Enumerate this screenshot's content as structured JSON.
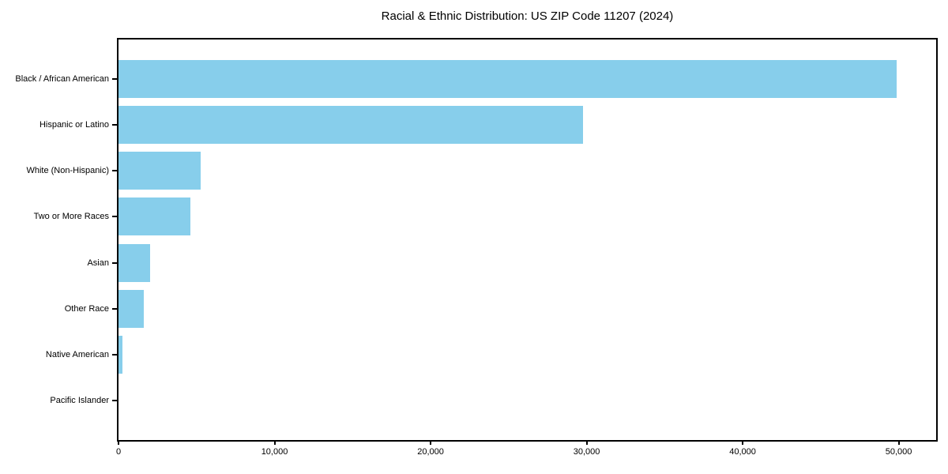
{
  "colors": {
    "bar": "#87CEEB",
    "axis": "#000000",
    "text": "#000000",
    "background": "#ffffff"
  },
  "chart_data": {
    "type": "bar",
    "orientation": "horizontal",
    "title": "Racial & Ethnic Distribution: US ZIP Code 11207 (2024)",
    "xlabel": "",
    "ylabel": "",
    "categories": [
      "Black / African American",
      "Hispanic or Latino",
      "White (Non-Hispanic)",
      "Two or More Races",
      "Asian",
      "Other Race",
      "Native American",
      "Pacific Islander"
    ],
    "values": [
      49850,
      29750,
      5250,
      4600,
      2000,
      1600,
      250,
      0
    ],
    "xlim": [
      0,
      52400
    ],
    "xticks": [
      {
        "value": 0,
        "label": "0"
      },
      {
        "value": 10000,
        "label": "10,000"
      },
      {
        "value": 20000,
        "label": "20,000"
      },
      {
        "value": 30000,
        "label": "30,000"
      },
      {
        "value": 40000,
        "label": "40,000"
      },
      {
        "value": 50000,
        "label": "50,000"
      }
    ],
    "grid": false,
    "legend": null,
    "bar_color": "#87CEEB"
  }
}
